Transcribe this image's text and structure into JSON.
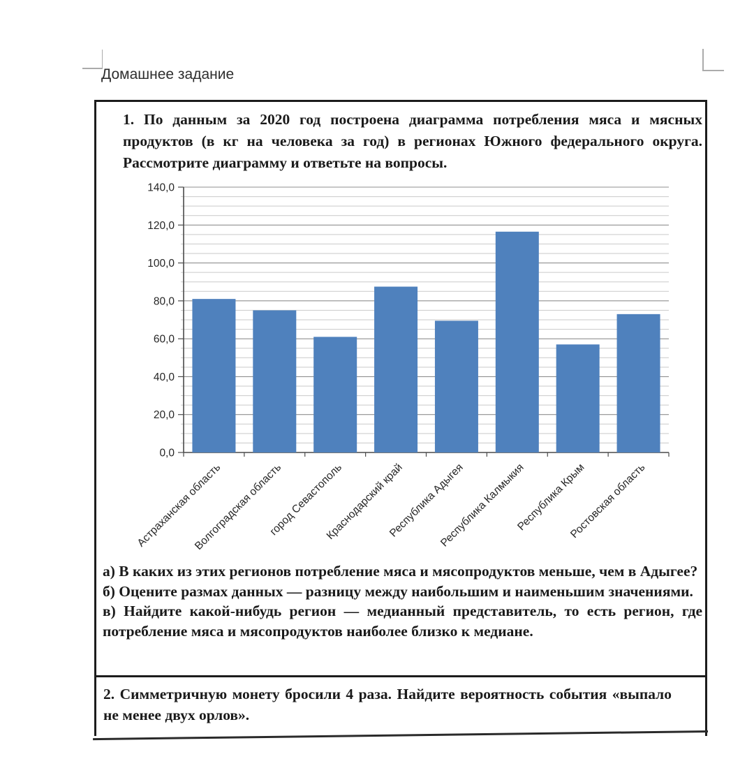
{
  "page": {
    "title": "Домашнее задание"
  },
  "problem1": {
    "number": "1.",
    "text": " По данным за 2020 год построена диаграмма потребления мяса и мясных продуктов (в кг на человека за год) в регионах Южного федерального округа. Рассмотрите диаграмму и ответьте на вопросы.",
    "questions": [
      {
        "label": "а)",
        "text": " В каких из этих регионов потребление мяса и мясопродуктов меньше, чем в Адыгее?"
      },
      {
        "label": "б)",
        "text": " Оцените размах данных — разницу между наибольшим и наименьшим значениями."
      },
      {
        "label": "в)",
        "text": " Найдите какой-нибудь регион — медианный представитель, то есть регион, где потребление мяса и мясопродуктов наиболее близко к медиане."
      }
    ]
  },
  "problem2": {
    "number": "2.",
    "text": " Симметричную монету бросили 4 раза. Найдите вероятность события «выпало не менее двух орлов»."
  },
  "chart_data": {
    "type": "bar",
    "categories": [
      "Астраханская область",
      "Волгоградская область",
      "город Севастополь",
      "Краснодарский край",
      "Республика Адыгея",
      "Республика Калмыкия",
      "Республика Крым",
      "Ростовская область"
    ],
    "values": [
      81,
      75,
      61,
      87.5,
      69.5,
      116.5,
      57,
      73
    ],
    "title": "",
    "xlabel": "",
    "ylabel": "",
    "ylim": [
      0,
      140
    ],
    "ytick_step": 20,
    "minor_grid_step": 5,
    "ytick_labels": [
      "0,0",
      "20,0",
      "40,0",
      "60,0",
      "80,0",
      "100,0",
      "120,0",
      "140,0"
    ],
    "grid": true,
    "legend_position": "none",
    "bar_color": "#4f81bd",
    "major_grid_color": "#8f8f8f",
    "minor_grid_color": "#c9c9c9",
    "axis_color": "#4a4a4a",
    "label_color": "#262626"
  }
}
